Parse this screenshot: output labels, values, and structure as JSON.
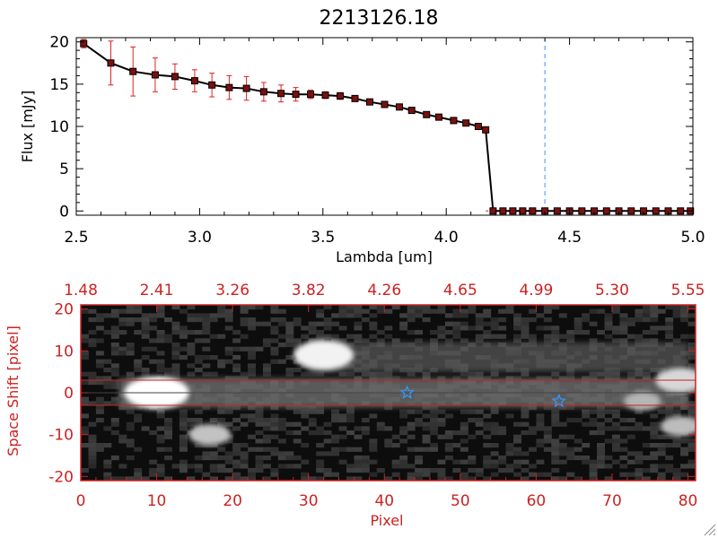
{
  "colors": {
    "foreground": "#000000",
    "accent_red": "#cc2222",
    "marker_fill": "#7a1010",
    "error_bar": "#dd2222",
    "dashed_line": "#3399ff",
    "star": "#3399ff"
  },
  "chart_data": [
    {
      "type": "line",
      "title": "2213126.18",
      "xlabel": "Lambda [um]",
      "ylabel": "Flux [mJy]",
      "xlim": [
        2.5,
        5.0
      ],
      "ylim": [
        -0.5,
        20.5
      ],
      "xticks": [
        "2.5",
        "3.0",
        "3.5",
        "4.0",
        "4.5",
        "5.0"
      ],
      "xtick_values": [
        2.5,
        3.0,
        3.5,
        4.0,
        4.5,
        5.0
      ],
      "yticks": [
        "0",
        "5",
        "10",
        "15",
        "20"
      ],
      "ytick_values": [
        0,
        5,
        10,
        15,
        20
      ],
      "vertical_line_x": 4.4,
      "series": [
        {
          "x": [
            2.53,
            2.64,
            2.73,
            2.82,
            2.9,
            2.98,
            3.05,
            3.12,
            3.19,
            3.26,
            3.33,
            3.39,
            3.45,
            3.51,
            3.57,
            3.63,
            3.69,
            3.75,
            3.81,
            3.86,
            3.92,
            3.97,
            4.03,
            4.08,
            4.13,
            4.16,
            4.19,
            4.23,
            4.27,
            4.31,
            4.35,
            4.4,
            4.45,
            4.5,
            4.55,
            4.6,
            4.65,
            4.7,
            4.75,
            4.8,
            4.85,
            4.9,
            4.95,
            4.99
          ],
          "y": [
            19.8,
            17.5,
            16.5,
            16.1,
            15.9,
            15.4,
            14.9,
            14.6,
            14.5,
            14.1,
            13.9,
            13.8,
            13.8,
            13.7,
            13.6,
            13.3,
            12.9,
            12.6,
            12.3,
            11.9,
            11.4,
            11.1,
            10.7,
            10.4,
            10.0,
            9.6,
            0.0,
            0.0,
            0.0,
            0.0,
            0.0,
            0.0,
            0.0,
            0.0,
            0.0,
            0.0,
            0.0,
            0.0,
            0.0,
            0.0,
            0.0,
            0.0,
            0.0,
            0.0
          ],
          "yerr": [
            0.5,
            2.6,
            2.9,
            2.0,
            1.5,
            1.3,
            1.4,
            1.4,
            1.4,
            1.1,
            1.0,
            0.8,
            0.5,
            0.4,
            0.4,
            0.3,
            0.3,
            0.3,
            0.3,
            0.3,
            0.3,
            0.3,
            0.3,
            0.3,
            0.3,
            0.3,
            0,
            0,
            0,
            0,
            0,
            0,
            0,
            0,
            0,
            0,
            0,
            0,
            0,
            0,
            0,
            0,
            0,
            0
          ]
        }
      ]
    },
    {
      "type": "heatmap",
      "xlabel": "Pixel",
      "ylabel": "Space Shift [pixel]",
      "xlim": [
        0,
        81
      ],
      "ylim": [
        -21,
        21
      ],
      "xticks": [
        "0",
        "10",
        "20",
        "30",
        "40",
        "50",
        "60",
        "70",
        "80"
      ],
      "xtick_values": [
        0,
        10,
        20,
        30,
        40,
        50,
        60,
        70,
        80
      ],
      "yticks": [
        "20",
        "10",
        "0",
        "-10",
        "-20"
      ],
      "ytick_values": [
        20,
        10,
        0,
        -10,
        -20
      ],
      "top_axis_labels": [
        "1.48",
        "2.41",
        "3.26",
        "3.82",
        "4.26",
        "4.65",
        "4.99",
        "5.30",
        "5.55"
      ],
      "extraction_aperture": [
        -3,
        3
      ],
      "stars": [
        {
          "x": 43,
          "y": 0
        },
        {
          "x": 63,
          "y": -2
        }
      ],
      "sources": [
        {
          "x": 10,
          "y": 0,
          "intensity": 1.0
        },
        {
          "x": 32,
          "y": 9,
          "intensity": 0.9
        },
        {
          "x": 17,
          "y": -10,
          "intensity": 0.55
        },
        {
          "x": 79,
          "y": 3,
          "intensity": 0.7
        },
        {
          "x": 79,
          "y": -8,
          "intensity": 0.5
        },
        {
          "x": 74,
          "y": -2,
          "intensity": 0.45
        }
      ]
    }
  ]
}
